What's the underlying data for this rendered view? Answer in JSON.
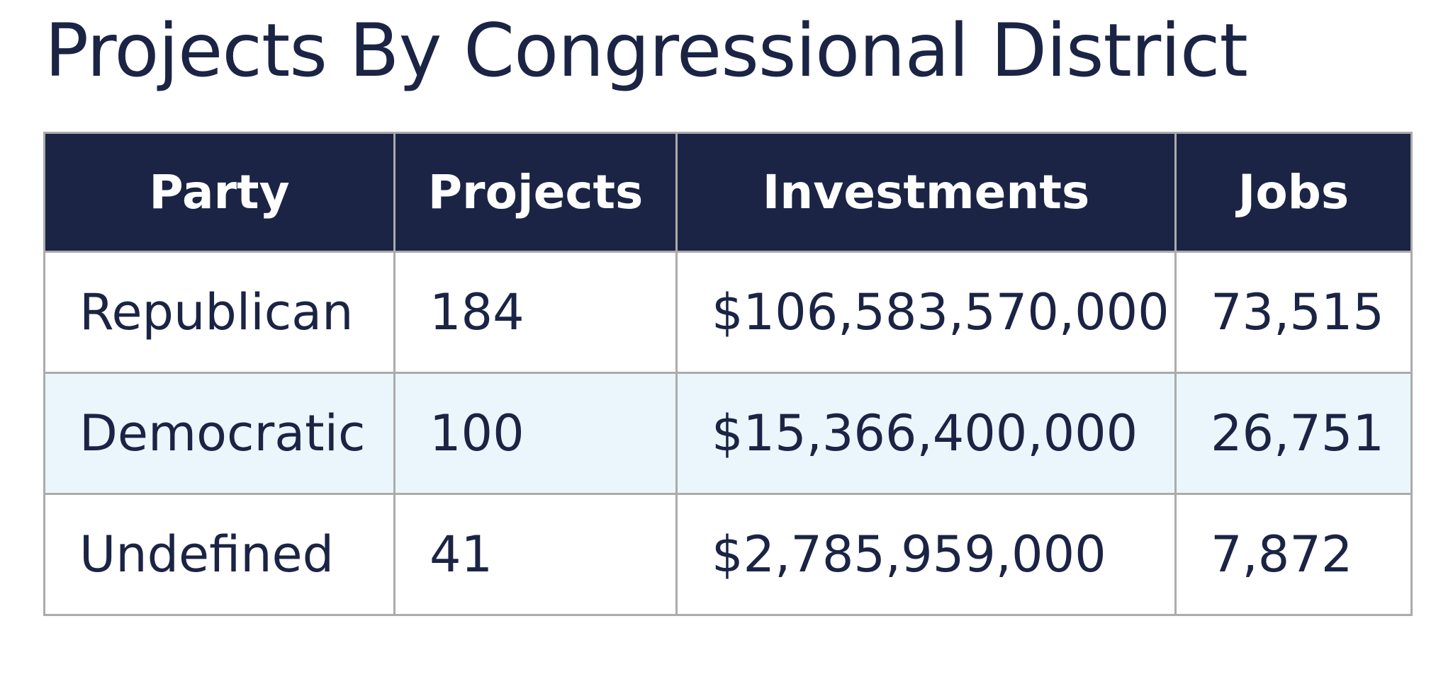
{
  "title": "Projects By Congressional District",
  "colors": {
    "header_bg": "#1b2444",
    "header_text": "#ffffff",
    "body_text": "#1b2444",
    "row_alt_bg": "#eaf6fc",
    "border": "#ababab"
  },
  "table": {
    "columns": [
      "Party",
      "Projects",
      "Investments",
      "Jobs"
    ],
    "rows": [
      [
        "Republican",
        "184",
        "$106,583,570,000",
        "73,515"
      ],
      [
        "Democratic",
        "100",
        "$15,366,400,000",
        "26,751"
      ],
      [
        "Undefined",
        "41",
        "$2,785,959,000",
        "7,872"
      ]
    ]
  }
}
